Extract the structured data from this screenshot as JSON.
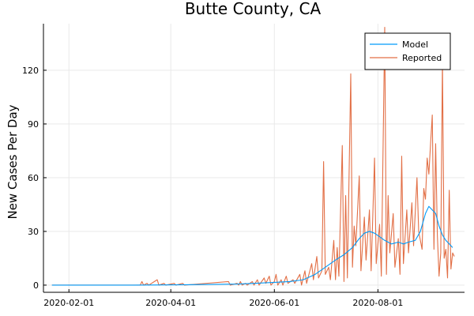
{
  "chart_data": {
    "type": "line",
    "title": "Butte County, CA",
    "xlabel": "",
    "ylabel": "New Cases Per Day",
    "x_start": "2020-01-22",
    "x_end": "2020-09-15",
    "xlim": [
      "2020-01-17",
      "2020-09-21"
    ],
    "ylim": [
      -4,
      146
    ],
    "x_ticks": [
      "2020-02-01",
      "2020-04-01",
      "2020-06-01",
      "2020-08-01"
    ],
    "y_ticks": [
      0,
      30,
      60,
      90,
      120
    ],
    "grid": true,
    "legend_position": "top-right",
    "series": [
      {
        "name": "Model",
        "color": "#009AF9",
        "points": [
          [
            "2020-01-22",
            0
          ],
          [
            "2020-03-10",
            0
          ],
          [
            "2020-04-10",
            0.2
          ],
          [
            "2020-05-10",
            0.6
          ],
          [
            "2020-05-20",
            1
          ],
          [
            "2020-05-31",
            1.5
          ],
          [
            "2020-06-10",
            2
          ],
          [
            "2020-06-18",
            3
          ],
          [
            "2020-06-25",
            6
          ],
          [
            "2020-07-01",
            10
          ],
          [
            "2020-07-07",
            14
          ],
          [
            "2020-07-12",
            17
          ],
          [
            "2020-07-17",
            21
          ],
          [
            "2020-07-21",
            26
          ],
          [
            "2020-07-24",
            29
          ],
          [
            "2020-07-27",
            30
          ],
          [
            "2020-07-30",
            29
          ],
          [
            "2020-08-02",
            27
          ],
          [
            "2020-08-05",
            25
          ],
          [
            "2020-08-09",
            23
          ],
          [
            "2020-08-13",
            24
          ],
          [
            "2020-08-16",
            23
          ],
          [
            "2020-08-19",
            24
          ],
          [
            "2020-08-23",
            25
          ],
          [
            "2020-08-26",
            30
          ],
          [
            "2020-08-29",
            40
          ],
          [
            "2020-08-31",
            44
          ],
          [
            "2020-09-02",
            42
          ],
          [
            "2020-09-04",
            40
          ],
          [
            "2020-09-06",
            33
          ],
          [
            "2020-09-08",
            28
          ],
          [
            "2020-09-10",
            25
          ],
          [
            "2020-09-12",
            23
          ],
          [
            "2020-09-14",
            21
          ]
        ]
      },
      {
        "name": "Reported",
        "color": "#E26F46",
        "points": [
          [
            "2020-01-22",
            0
          ],
          [
            "2020-03-14",
            0
          ],
          [
            "2020-03-15",
            2
          ],
          [
            "2020-03-16",
            0
          ],
          [
            "2020-03-18",
            1
          ],
          [
            "2020-03-19",
            0
          ],
          [
            "2020-03-24",
            3
          ],
          [
            "2020-03-25",
            0
          ],
          [
            "2020-03-28",
            1
          ],
          [
            "2020-03-29",
            0
          ],
          [
            "2020-04-03",
            1
          ],
          [
            "2020-04-04",
            0
          ],
          [
            "2020-04-08",
            1
          ],
          [
            "2020-04-09",
            0
          ],
          [
            "2020-05-05",
            2
          ],
          [
            "2020-05-06",
            0
          ],
          [
            "2020-05-10",
            1
          ],
          [
            "2020-05-11",
            0
          ],
          [
            "2020-05-12",
            2
          ],
          [
            "2020-05-13",
            0
          ],
          [
            "2020-05-15",
            1
          ],
          [
            "2020-05-16",
            0
          ],
          [
            "2020-05-19",
            2
          ],
          [
            "2020-05-20",
            0
          ],
          [
            "2020-05-22",
            3
          ],
          [
            "2020-05-23",
            0
          ],
          [
            "2020-05-26",
            4
          ],
          [
            "2020-05-27",
            1
          ],
          [
            "2020-05-29",
            5
          ],
          [
            "2020-05-30",
            0
          ],
          [
            "2020-06-01",
            2
          ],
          [
            "2020-06-02",
            6
          ],
          [
            "2020-06-03",
            0
          ],
          [
            "2020-06-05",
            3
          ],
          [
            "2020-06-06",
            0
          ],
          [
            "2020-06-08",
            5
          ],
          [
            "2020-06-09",
            1
          ],
          [
            "2020-06-12",
            3
          ],
          [
            "2020-06-13",
            1
          ],
          [
            "2020-06-16",
            6
          ],
          [
            "2020-06-17",
            0
          ],
          [
            "2020-06-19",
            8
          ],
          [
            "2020-06-20",
            1
          ],
          [
            "2020-06-23",
            12
          ],
          [
            "2020-06-24",
            3
          ],
          [
            "2020-06-26",
            16
          ],
          [
            "2020-06-27",
            4
          ],
          [
            "2020-06-29",
            8
          ],
          [
            "2020-06-30",
            69
          ],
          [
            "2020-07-01",
            6
          ],
          [
            "2020-07-03",
            10
          ],
          [
            "2020-07-04",
            3
          ],
          [
            "2020-07-06",
            25
          ],
          [
            "2020-07-07",
            3
          ],
          [
            "2020-07-08",
            21
          ],
          [
            "2020-07-09",
            5
          ],
          [
            "2020-07-11",
            78
          ],
          [
            "2020-07-12",
            2
          ],
          [
            "2020-07-13",
            50
          ],
          [
            "2020-07-14",
            4
          ],
          [
            "2020-07-16",
            118
          ],
          [
            "2020-07-17",
            10
          ],
          [
            "2020-07-18",
            33
          ],
          [
            "2020-07-19",
            22
          ],
          [
            "2020-07-21",
            61
          ],
          [
            "2020-07-22",
            8
          ],
          [
            "2020-07-24",
            38
          ],
          [
            "2020-07-25",
            14
          ],
          [
            "2020-07-27",
            42
          ],
          [
            "2020-07-28",
            8
          ],
          [
            "2020-07-30",
            71
          ],
          [
            "2020-07-31",
            12
          ],
          [
            "2020-08-02",
            34
          ],
          [
            "2020-08-03",
            5
          ],
          [
            "2020-08-05",
            144
          ],
          [
            "2020-08-06",
            6
          ],
          [
            "2020-08-07",
            50
          ],
          [
            "2020-08-08",
            18
          ],
          [
            "2020-08-10",
            40
          ],
          [
            "2020-08-11",
            10
          ],
          [
            "2020-08-13",
            26
          ],
          [
            "2020-08-14",
            6
          ],
          [
            "2020-08-15",
            72
          ],
          [
            "2020-08-16",
            12
          ],
          [
            "2020-08-18",
            42
          ],
          [
            "2020-08-19",
            18
          ],
          [
            "2020-08-21",
            46
          ],
          [
            "2020-08-22",
            22
          ],
          [
            "2020-08-24",
            60
          ],
          [
            "2020-08-25",
            30
          ],
          [
            "2020-08-27",
            20
          ],
          [
            "2020-08-28",
            54
          ],
          [
            "2020-08-29",
            48
          ],
          [
            "2020-08-30",
            71
          ],
          [
            "2020-08-31",
            62
          ],
          [
            "2020-09-01",
            79
          ],
          [
            "2020-09-02",
            95
          ],
          [
            "2020-09-03",
            20
          ],
          [
            "2020-09-04",
            79
          ],
          [
            "2020-09-05",
            28
          ],
          [
            "2020-09-06",
            5
          ],
          [
            "2020-09-07",
            18
          ],
          [
            "2020-09-08",
            125
          ],
          [
            "2020-09-09",
            15
          ],
          [
            "2020-09-10",
            20
          ],
          [
            "2020-09-11",
            4
          ],
          [
            "2020-09-12",
            53
          ],
          [
            "2020-09-13",
            9
          ],
          [
            "2020-09-14",
            18
          ],
          [
            "2020-09-15",
            16
          ]
        ]
      }
    ]
  }
}
